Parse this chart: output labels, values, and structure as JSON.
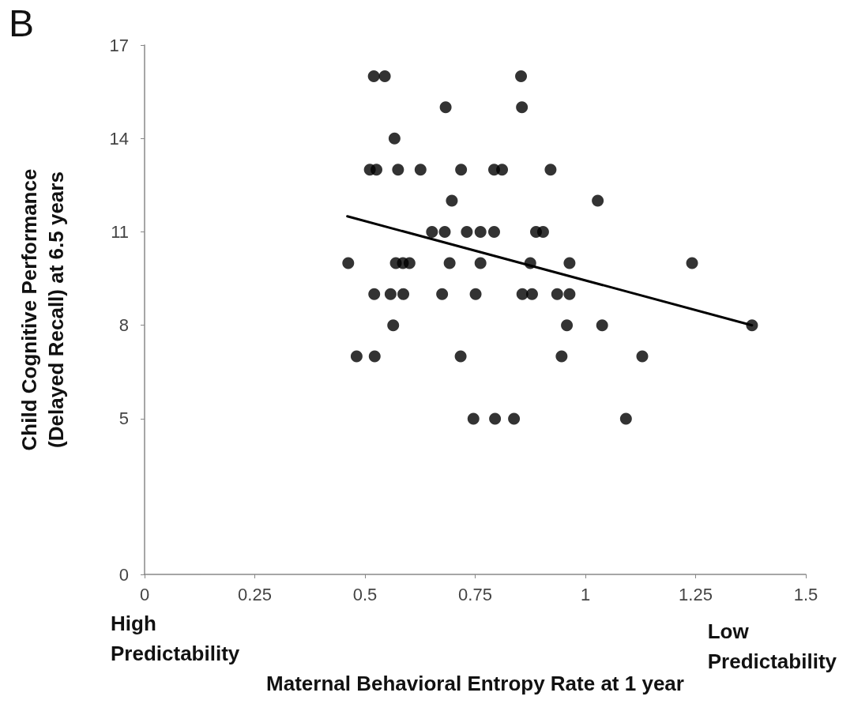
{
  "chart_data": {
    "type": "scatter",
    "title": "B",
    "xlabel": "Maternal Behavioral Entropy Rate at 1 year",
    "ylabel": "Child Cognitive Performance\n(Delayed Recall) at 6.5 years",
    "annotations": [
      "High\nPredictability",
      "Low\nPredictability"
    ],
    "xlim": [
      0,
      1.5
    ],
    "xticks": [
      0,
      0.25,
      0.5,
      0.75,
      1,
      1.25,
      1.5
    ],
    "ylim": [
      0,
      17
    ],
    "yticks": [
      0,
      5,
      8,
      11,
      14,
      17
    ],
    "marker": "circle",
    "series": [
      {
        "color": "#000000",
        "x": [
          0.52,
          0.545,
          0.854,
          0.683,
          0.856,
          0.567,
          0.511,
          0.526,
          0.575,
          0.626,
          0.718,
          0.793,
          0.811,
          0.921,
          0.697,
          1.028,
          0.652,
          0.681,
          0.731,
          0.762,
          0.793,
          0.888,
          0.904,
          0.462,
          0.57,
          0.586,
          0.601,
          0.692,
          0.762,
          0.875,
          0.964,
          1.242,
          0.521,
          0.558,
          0.587,
          0.675,
          0.751,
          0.857,
          0.879,
          0.936,
          0.964,
          0.564,
          0.958,
          1.038,
          1.378,
          0.481,
          0.522,
          0.717,
          0.946,
          1.129,
          0.746,
          0.795,
          0.838,
          1.092
        ],
        "values": [
          16,
          16,
          16,
          15,
          15,
          14,
          13,
          13,
          13,
          13,
          13,
          13,
          13,
          13,
          12,
          12,
          11,
          11,
          11,
          11,
          11,
          11,
          11,
          10,
          10,
          10,
          10,
          10,
          10,
          10,
          10,
          10,
          9,
          9,
          9,
          9,
          9,
          9,
          9,
          9,
          9,
          8,
          8,
          8,
          8,
          7,
          7,
          7,
          7,
          7,
          5,
          5,
          5,
          5
        ]
      },
      {
        "type": "line",
        "color": "#000000",
        "marker": "none",
        "x": [
          0.46,
          1.378
        ],
        "values": [
          11.5,
          8.0
        ]
      }
    ]
  }
}
